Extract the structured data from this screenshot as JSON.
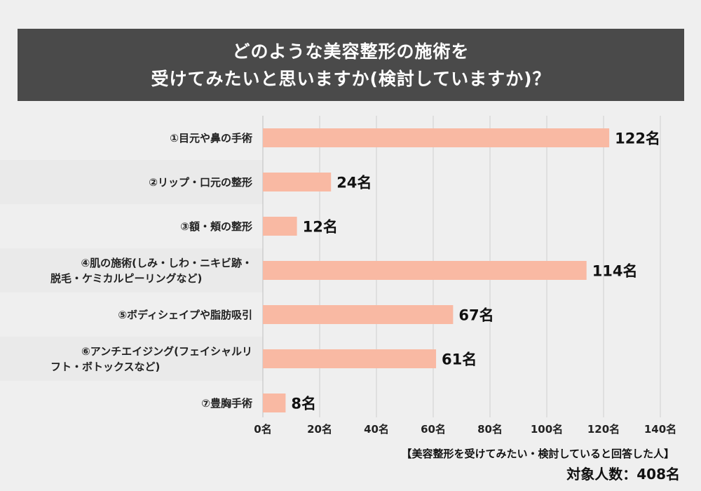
{
  "title": {
    "line1": "どのような美容整形の施術を",
    "line2": "受けてみたいと思いますか(検討していますか)？"
  },
  "chart_data": {
    "type": "bar",
    "orientation": "horizontal",
    "title": "どのような美容整形の施術を受けてみたいと思いますか(検討していますか)？",
    "unit": "名",
    "categories": [
      "①目元や鼻の手術",
      "②リップ・口元の整形",
      "③額・頬の整形",
      "④肌の施術(しみ・しわ・ニキビ跡・脱毛・ケミカルピーリングなど)",
      "⑤ボディシェイプや脂肪吸引",
      "⑥アンチエイジング(フェイシャルリフト・ボトックスなど)",
      "⑦豊胸手術"
    ],
    "category_lines": [
      [
        "①目元や鼻の手術"
      ],
      [
        "②リップ・口元の整形"
      ],
      [
        "③額・頬の整形"
      ],
      [
        "④肌の施術(しみ・しわ・ニキビ跡・",
        "脱毛・ケミカルピーリングなど)"
      ],
      [
        "⑤ボディシェイプや脂肪吸引"
      ],
      [
        "⑥アンチエイジング(フェイシャルリ",
        "フト・ボトックスなど)"
      ],
      [
        "⑦豊胸手術"
      ]
    ],
    "values": [
      122,
      24,
      12,
      114,
      67,
      61,
      8
    ],
    "value_labels": [
      "122名",
      "24名",
      "12名",
      "114名",
      "67名",
      "61名",
      "8名"
    ],
    "xlim": [
      0,
      140
    ],
    "xticks": [
      0,
      20,
      40,
      60,
      80,
      100,
      120,
      140
    ],
    "xtick_labels": [
      "0名",
      "20名",
      "40名",
      "60名",
      "80名",
      "100名",
      "120名",
      "140名"
    ],
    "grid": true,
    "bar_color": "#f9b9a3",
    "grid_color": "#cfcfcf"
  },
  "footer": {
    "note": "【美容整形を受けてみたい・検討していると回答した人】",
    "total": "対象人数：408名"
  }
}
